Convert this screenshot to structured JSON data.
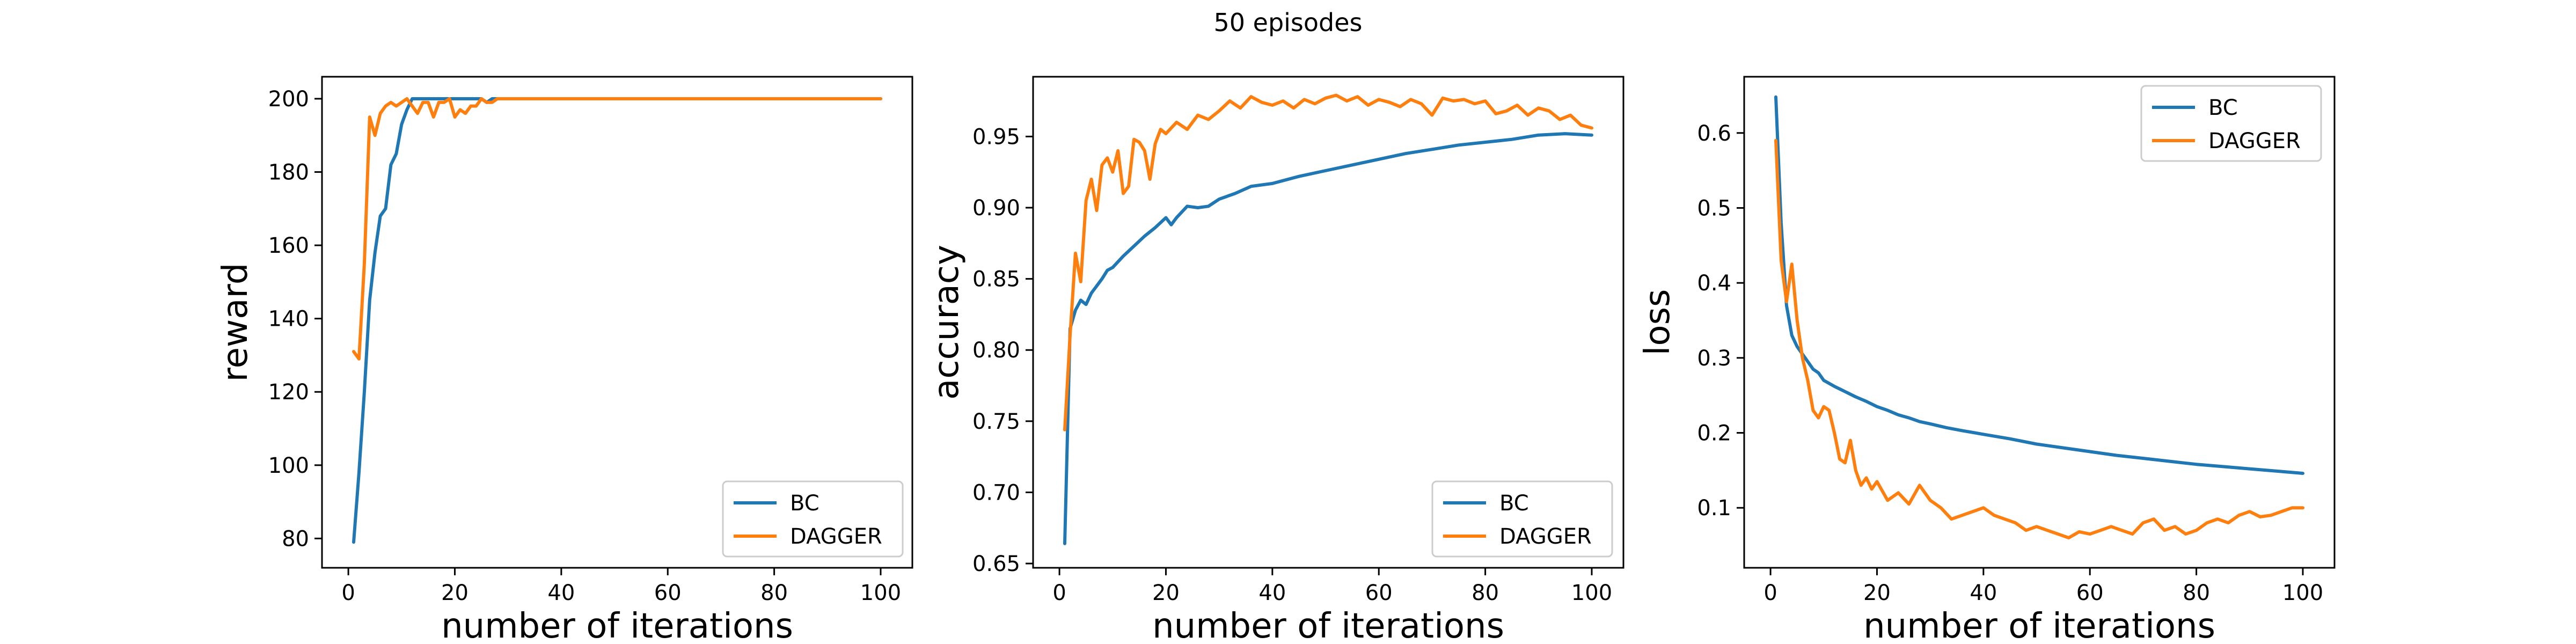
{
  "figure": {
    "title": "50 episodes"
  },
  "chart_data": [
    {
      "type": "line",
      "xlabel": "number of iterations",
      "ylabel": "reward",
      "xlim": [
        -4.95,
        105.95
      ],
      "ylim": [
        72,
        206
      ],
      "xticks": [
        0,
        20,
        40,
        60,
        80,
        100
      ],
      "yticks": [
        80,
        100,
        120,
        140,
        160,
        180,
        200
      ],
      "ytick_labels": [
        "80",
        "100",
        "120",
        "140",
        "160",
        "180",
        "200"
      ],
      "legend_position": "lower right",
      "grid": false,
      "series": [
        {
          "name": "BC",
          "color": "#1f77b4",
          "x": [
            1,
            2,
            3,
            4,
            5,
            6,
            7,
            8,
            9,
            10,
            11,
            12,
            13,
            14,
            15,
            16,
            17,
            18,
            19,
            20,
            21,
            22,
            23,
            24,
            25,
            26,
            27,
            28,
            29,
            30,
            35,
            40,
            50,
            60,
            70,
            80,
            90,
            100
          ],
          "y": [
            79,
            98,
            120,
            145,
            158,
            168,
            170,
            182,
            185,
            193,
            197,
            200,
            200,
            200,
            200,
            200,
            200,
            200,
            200,
            200,
            200,
            200,
            200,
            200,
            200,
            199,
            200,
            200,
            200,
            200,
            200,
            200,
            200,
            200,
            200,
            200,
            200,
            200
          ]
        },
        {
          "name": "DAGGER",
          "color": "#ff7f0e",
          "x": [
            1,
            2,
            3,
            4,
            5,
            6,
            7,
            8,
            9,
            10,
            11,
            12,
            13,
            14,
            15,
            16,
            17,
            18,
            19,
            20,
            21,
            22,
            23,
            24,
            25,
            26,
            27,
            28,
            29,
            30,
            35,
            40,
            50,
            60,
            70,
            80,
            90,
            100
          ],
          "y": [
            131,
            129,
            155,
            195,
            190,
            196,
            198,
            199,
            198,
            199,
            200,
            198,
            196,
            199,
            199,
            195,
            199,
            199,
            200,
            195,
            197,
            196,
            198,
            198,
            200,
            199,
            199,
            200,
            200,
            200,
            200,
            200,
            200,
            200,
            200,
            200,
            200,
            200
          ]
        }
      ]
    },
    {
      "type": "line",
      "xlabel": "number of iterations",
      "ylabel": "accuracy",
      "xlim": [
        -4.95,
        105.95
      ],
      "ylim": [
        0.647,
        0.992
      ],
      "xticks": [
        0,
        20,
        40,
        60,
        80,
        100
      ],
      "yticks": [
        0.65,
        0.7,
        0.75,
        0.8,
        0.85,
        0.9,
        0.95
      ],
      "ytick_labels": [
        "0.65",
        "0.70",
        "0.75",
        "0.80",
        "0.85",
        "0.90",
        "0.95"
      ],
      "legend_position": "lower right",
      "grid": false,
      "series": [
        {
          "name": "BC",
          "color": "#1f77b4",
          "x": [
            1,
            2,
            3,
            4,
            5,
            6,
            7,
            8,
            9,
            10,
            12,
            14,
            16,
            18,
            20,
            21,
            22,
            24,
            26,
            28,
            30,
            33,
            36,
            40,
            45,
            50,
            55,
            60,
            65,
            70,
            75,
            80,
            85,
            90,
            95,
            100
          ],
          "y": [
            0.664,
            0.815,
            0.828,
            0.835,
            0.832,
            0.84,
            0.845,
            0.85,
            0.856,
            0.858,
            0.866,
            0.873,
            0.88,
            0.886,
            0.893,
            0.888,
            0.893,
            0.901,
            0.9,
            0.901,
            0.906,
            0.91,
            0.915,
            0.917,
            0.922,
            0.926,
            0.93,
            0.934,
            0.938,
            0.941,
            0.944,
            0.946,
            0.948,
            0.951,
            0.952,
            0.951
          ]
        },
        {
          "name": "DAGGER",
          "color": "#ff7f0e",
          "x": [
            1,
            2,
            3,
            4,
            5,
            6,
            7,
            8,
            9,
            10,
            11,
            12,
            13,
            14,
            15,
            16,
            17,
            18,
            19,
            20,
            22,
            24,
            26,
            28,
            30,
            32,
            34,
            36,
            38,
            40,
            42,
            44,
            46,
            48,
            50,
            52,
            54,
            56,
            58,
            60,
            62,
            64,
            66,
            68,
            70,
            72,
            74,
            76,
            78,
            80,
            82,
            84,
            86,
            88,
            90,
            92,
            94,
            96,
            98,
            100
          ],
          "y": [
            0.744,
            0.81,
            0.868,
            0.848,
            0.905,
            0.92,
            0.898,
            0.93,
            0.935,
            0.925,
            0.94,
            0.91,
            0.915,
            0.948,
            0.946,
            0.94,
            0.92,
            0.945,
            0.955,
            0.952,
            0.96,
            0.955,
            0.965,
            0.962,
            0.968,
            0.975,
            0.97,
            0.978,
            0.974,
            0.972,
            0.975,
            0.97,
            0.976,
            0.973,
            0.977,
            0.979,
            0.975,
            0.978,
            0.972,
            0.976,
            0.974,
            0.971,
            0.976,
            0.973,
            0.965,
            0.977,
            0.975,
            0.976,
            0.973,
            0.975,
            0.966,
            0.968,
            0.972,
            0.965,
            0.97,
            0.968,
            0.962,
            0.965,
            0.958,
            0.956
          ]
        }
      ]
    },
    {
      "type": "line",
      "xlabel": "number of iterations",
      "ylabel": "loss",
      "xlim": [
        -4.95,
        105.95
      ],
      "ylim": [
        0.02,
        0.675
      ],
      "xticks": [
        0,
        20,
        40,
        60,
        80,
        100
      ],
      "yticks": [
        0.1,
        0.2,
        0.3,
        0.4,
        0.5,
        0.6
      ],
      "ytick_labels": [
        "0.1",
        "0.2",
        "0.3",
        "0.4",
        "0.5",
        "0.6"
      ],
      "legend_position": "upper right",
      "grid": false,
      "series": [
        {
          "name": "BC",
          "color": "#1f77b4",
          "x": [
            1,
            2,
            3,
            4,
            5,
            6,
            7,
            8,
            9,
            10,
            12,
            14,
            16,
            18,
            20,
            22,
            24,
            26,
            28,
            30,
            33,
            36,
            40,
            45,
            50,
            55,
            60,
            65,
            70,
            75,
            80,
            85,
            90,
            95,
            100
          ],
          "y": [
            0.648,
            0.48,
            0.37,
            0.33,
            0.315,
            0.305,
            0.295,
            0.285,
            0.28,
            0.27,
            0.262,
            0.255,
            0.248,
            0.242,
            0.235,
            0.23,
            0.224,
            0.22,
            0.215,
            0.212,
            0.207,
            0.203,
            0.198,
            0.192,
            0.185,
            0.18,
            0.175,
            0.17,
            0.166,
            0.162,
            0.158,
            0.155,
            0.152,
            0.149,
            0.146
          ]
        },
        {
          "name": "DAGGER",
          "color": "#ff7f0e",
          "x": [
            1,
            2,
            3,
            4,
            5,
            6,
            7,
            8,
            9,
            10,
            11,
            12,
            13,
            14,
            15,
            16,
            17,
            18,
            19,
            20,
            22,
            24,
            26,
            28,
            30,
            32,
            34,
            36,
            38,
            40,
            42,
            44,
            46,
            48,
            50,
            52,
            54,
            56,
            58,
            60,
            62,
            64,
            66,
            68,
            70,
            72,
            74,
            76,
            78,
            80,
            82,
            84,
            86,
            88,
            90,
            92,
            94,
            96,
            98,
            100
          ],
          "y": [
            0.59,
            0.43,
            0.375,
            0.425,
            0.35,
            0.3,
            0.27,
            0.23,
            0.22,
            0.235,
            0.23,
            0.2,
            0.165,
            0.16,
            0.19,
            0.15,
            0.13,
            0.14,
            0.125,
            0.135,
            0.11,
            0.12,
            0.105,
            0.13,
            0.11,
            0.1,
            0.085,
            0.09,
            0.095,
            0.1,
            0.09,
            0.085,
            0.08,
            0.07,
            0.075,
            0.07,
            0.065,
            0.06,
            0.068,
            0.065,
            0.07,
            0.075,
            0.07,
            0.065,
            0.08,
            0.085,
            0.07,
            0.075,
            0.065,
            0.07,
            0.08,
            0.085,
            0.08,
            0.09,
            0.095,
            0.088,
            0.09,
            0.095,
            0.1,
            0.1
          ]
        }
      ]
    }
  ]
}
